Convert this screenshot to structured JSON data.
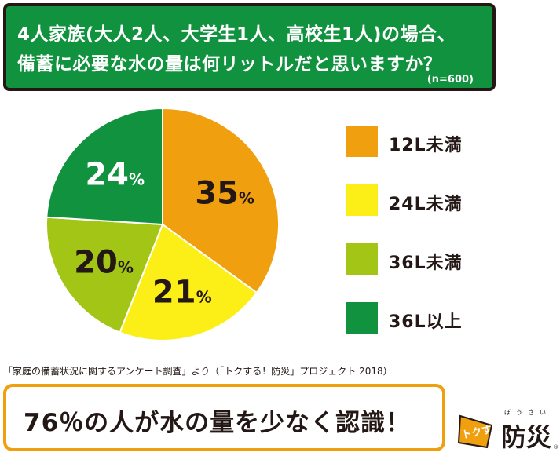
{
  "header": {
    "line1": "4人家族(大人2人、大学生1人、高校生1人)の場合、",
    "line2": "備蓄に必要な水の量は何リットルだと思いますか？",
    "sample": "(n=600)",
    "bg_color": "#11923f"
  },
  "chart_data": {
    "type": "pie",
    "unit": "%",
    "slices": [
      {
        "label": "12L未満",
        "value": 35,
        "color": "#f0a00f"
      },
      {
        "label": "24L未満",
        "value": 21,
        "color": "#fcef17"
      },
      {
        "label": "36L未満",
        "value": 20,
        "color": "#a2c516"
      },
      {
        "label": "36L以上",
        "value": 24,
        "color": "#11923f"
      }
    ],
    "legend_position": "right"
  },
  "source": "「家庭の備蓄状況に関するアンケート調査」より（「トクする！防災」プロジェクト 2018）",
  "callout": {
    "text": "76％の人が水の量を少なく認識！",
    "border_color": "#f0a00f"
  },
  "logo": {
    "badge": "トクする!",
    "main": "防災",
    "ruby": "ぼうさい",
    "reg": "®",
    "badge_color": "#f0a00f"
  }
}
